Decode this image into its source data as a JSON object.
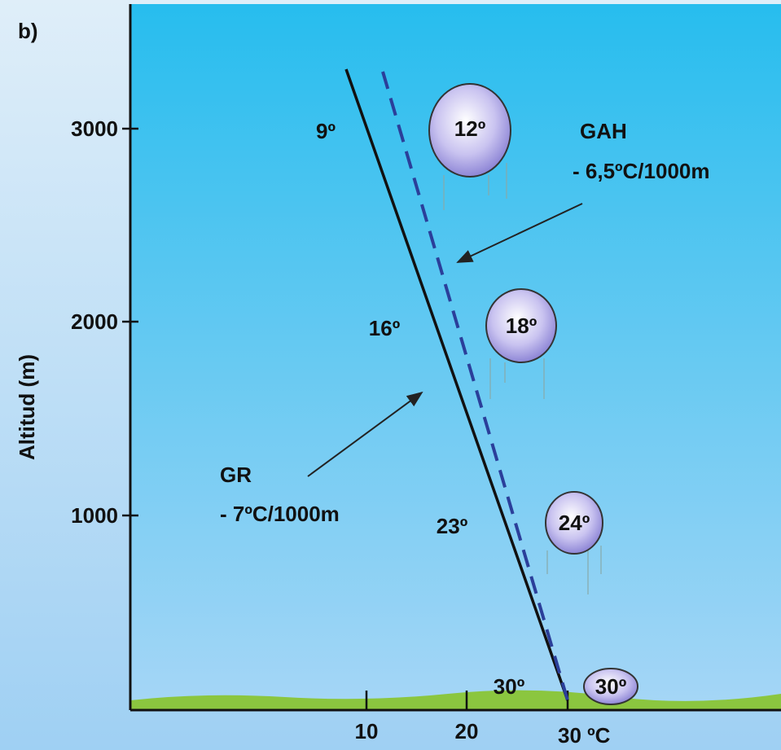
{
  "panel_label": "b)",
  "y_axis": {
    "label": "Altitud (m)",
    "ticks": [
      "3000",
      "2000",
      "1000"
    ]
  },
  "x_axis": {
    "ticks": [
      "10",
      "20",
      "30 ºC"
    ]
  },
  "curves": [
    {
      "name": "GAH",
      "rate": "- 6,5ºC/1000m"
    },
    {
      "name": "GR",
      "rate": "- 7ºC/1000m"
    }
  ],
  "environment_temps": [
    "9º",
    "16º",
    "23º",
    "30º"
  ],
  "parcel_temps": [
    "12º",
    "18º",
    "24º",
    "30º"
  ]
}
